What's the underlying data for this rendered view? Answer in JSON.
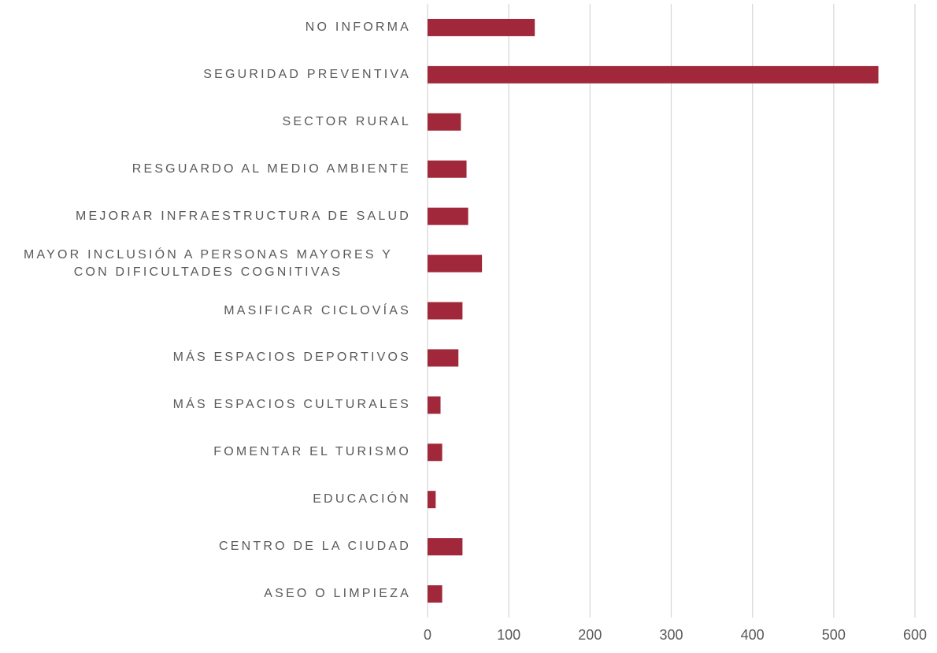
{
  "chart_data": {
    "type": "barh",
    "categories": [
      "NO INFORMA",
      "SEGURIDAD PREVENTIVA",
      "SECTOR RURAL",
      "RESGUARDO AL MEDIO AMBIENTE",
      "MEJORAR INFRAESTRUCTURA DE SALUD",
      "MAYOR INCLUSIÓN A PERSONAS MAYORES Y CON DIFICULTADES COGNITIVAS",
      "MASIFICAR CICLOVÍAS",
      "MÁS ESPACIOS DEPORTIVOS",
      "MÁS ESPACIOS CULTURALES",
      "FOMENTAR EL TURISMO",
      "EDUCACIÓN",
      "CENTRO DE LA CIUDAD",
      "ASEO O LIMPIEZA"
    ],
    "values": [
      132,
      555,
      41,
      48,
      50,
      67,
      43,
      38,
      16,
      18,
      10,
      43,
      18
    ],
    "color": "#a0283a",
    "xlim": [
      0,
      600
    ],
    "xticks": [
      0,
      100,
      200,
      300,
      400,
      500,
      600
    ],
    "grid": true
  }
}
